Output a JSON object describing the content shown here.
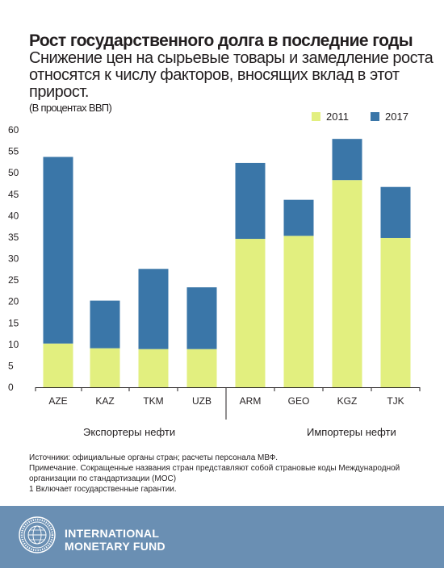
{
  "header": {
    "title": "Рост государственного долга в последние годы",
    "subtitle": "Снижение цен на сырьевые товары и замедление роста относятся к числу факторов, вносящих вклад в этот прирост.",
    "unit_note": "(В процентах ВВП)"
  },
  "legend": [
    {
      "label": "2011",
      "color": "#e2ef7f"
    },
    {
      "label": "2017",
      "color": "#3a76a8"
    }
  ],
  "groups": {
    "exporters": "Экспортеры нефти",
    "importers": "Импортеры нефти"
  },
  "chart_data": {
    "type": "bar",
    "stacked": true,
    "categories": [
      "AZE",
      "KAZ",
      "TKM",
      "UZB",
      "ARM",
      "GEO",
      "KGZ",
      "TJK"
    ],
    "series": [
      {
        "name": "2011",
        "color": "#e2ef7f",
        "values": [
          10.2,
          9.1,
          8.9,
          8.9,
          34.6,
          35.3,
          48.3,
          34.8
        ]
      },
      {
        "name": "2017",
        "color": "#3a76a8",
        "values": [
          43.5,
          11.1,
          18.7,
          14.4,
          17.7,
          8.4,
          9.6,
          11.9
        ]
      }
    ],
    "ylim": [
      0,
      60
    ],
    "yticks": [
      0,
      5,
      10,
      15,
      20,
      25,
      30,
      35,
      40,
      45,
      50,
      55,
      60
    ],
    "grid": false
  },
  "notes": [
    "Источники: официальные органы стран; расчеты персонала МВФ.",
    "Примечание. Сокращенные названия стран представляют собой страновые коды Международной организации по стандартизации (МОС)",
    "1 Включает государственные гарантии."
  ],
  "footer": {
    "org_line1": "INTERNATIONAL",
    "org_line2": "MONETARY FUND",
    "logo_color": "#ffffff",
    "background": "#6a8fb3"
  }
}
